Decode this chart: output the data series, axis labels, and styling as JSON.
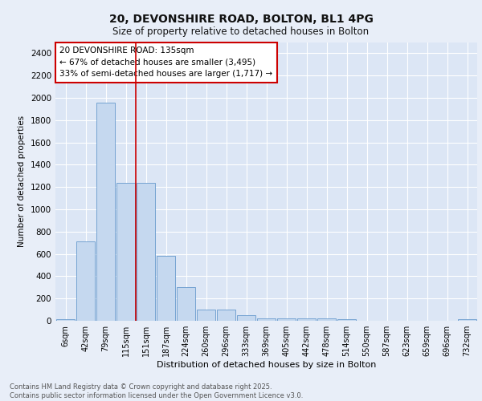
{
  "title_line1": "20, DEVONSHIRE ROAD, BOLTON, BL1 4PG",
  "title_line2": "Size of property relative to detached houses in Bolton",
  "xlabel": "Distribution of detached houses by size in Bolton",
  "ylabel": "Number of detached properties",
  "categories": [
    "6sqm",
    "42sqm",
    "79sqm",
    "115sqm",
    "151sqm",
    "187sqm",
    "224sqm",
    "260sqm",
    "296sqm",
    "333sqm",
    "369sqm",
    "405sqm",
    "442sqm",
    "478sqm",
    "514sqm",
    "550sqm",
    "587sqm",
    "623sqm",
    "659sqm",
    "696sqm",
    "732sqm"
  ],
  "values": [
    15,
    710,
    1960,
    1240,
    1240,
    580,
    305,
    100,
    100,
    50,
    20,
    20,
    20,
    20,
    15,
    0,
    0,
    0,
    0,
    0,
    15
  ],
  "bar_color": "#c5d8ef",
  "bar_edge_color": "#6699cc",
  "vline_color": "#cc0000",
  "vline_pos": 3.5,
  "annotation_text": "20 DEVONSHIRE ROAD: 135sqm\n← 67% of detached houses are smaller (3,495)\n33% of semi-detached houses are larger (1,717) →",
  "annotation_box_edgecolor": "#cc0000",
  "annotation_box_facecolor": "#ffffff",
  "ylim": [
    0,
    2500
  ],
  "yticks": [
    0,
    200,
    400,
    600,
    800,
    1000,
    1200,
    1400,
    1600,
    1800,
    2000,
    2200,
    2400
  ],
  "plot_bg": "#dce6f5",
  "fig_bg": "#e8eef8",
  "grid_color": "#ffffff",
  "footer_text": "Contains HM Land Registry data © Crown copyright and database right 2025.\nContains public sector information licensed under the Open Government Licence v3.0."
}
